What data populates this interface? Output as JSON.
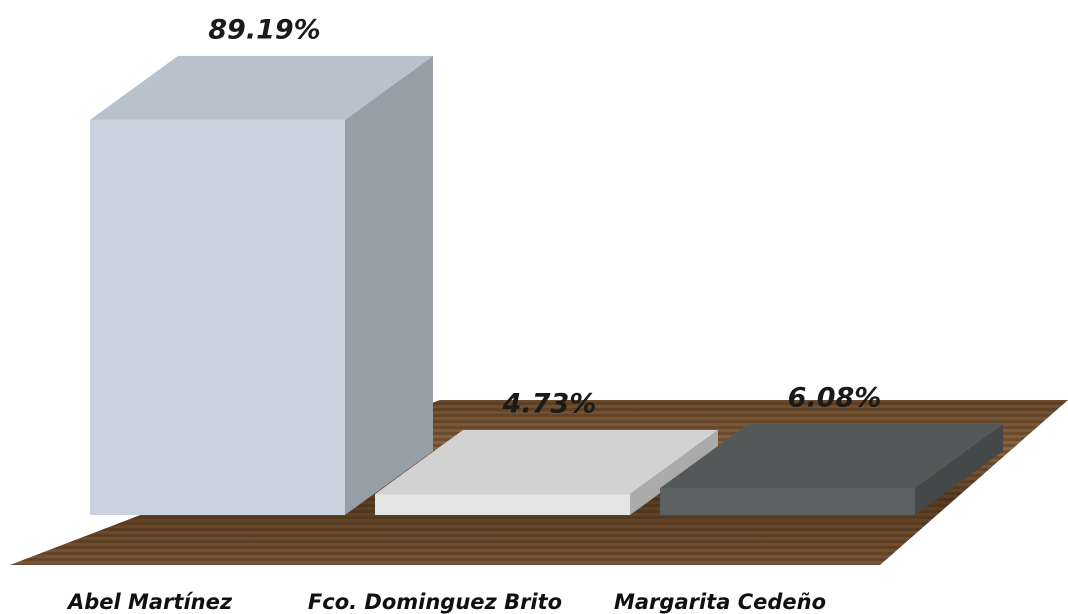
{
  "chart_data": {
    "type": "bar3d",
    "categories": [
      "Abel Martínez",
      "Fco. Dominguez Brito",
      "Margarita Cedeño"
    ],
    "values": [
      89.19,
      4.73,
      6.08
    ],
    "value_labels": [
      "89.19%",
      "4.73%",
      "6.08%"
    ],
    "colors": [
      "#c8d3df",
      "#e4e4e4",
      "#5b6061"
    ]
  }
}
